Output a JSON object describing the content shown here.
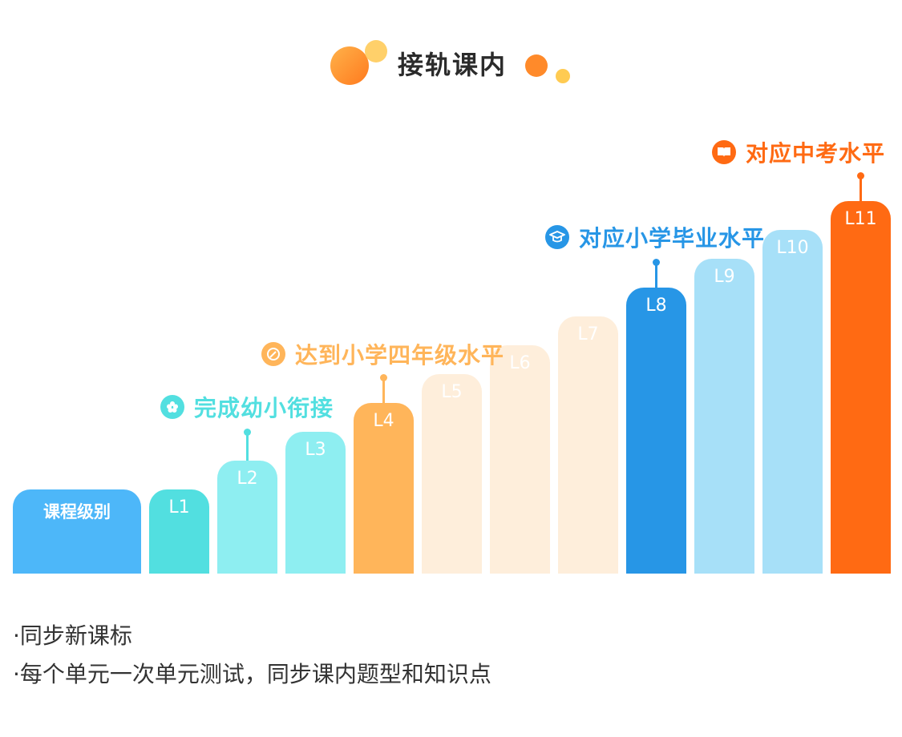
{
  "header": {
    "title": "接轨课内"
  },
  "colors": {
    "teal": "#52DFE0",
    "cyan_light": "#8EEEF1",
    "orange_mid": "#FFB55A",
    "cream": "#FEEEDB",
    "blue": "#2796E6",
    "sky": "#A7E0F8",
    "orange_deep": "#FF6A13",
    "base_blue": "#4DB7F9"
  },
  "chart_data": {
    "type": "bar",
    "categories": [
      "课程级别",
      "L1",
      "L2",
      "L3",
      "L4",
      "L5",
      "L6",
      "L7",
      "L8",
      "L9",
      "L10",
      "L11"
    ],
    "values": [
      1,
      1,
      2,
      3,
      4,
      5,
      6,
      7,
      8,
      9,
      10,
      11
    ],
    "bar_colors": [
      "#4DB7F9",
      "#52DFE0",
      "#8EEEF1",
      "#8EEEF1",
      "#FFB55A",
      "#FEEEDB",
      "#FEEEDB",
      "#FEEEDB",
      "#2796E6",
      "#A7E0F8",
      "#A7E0F8",
      "#FF6A13"
    ],
    "label_colors": [
      "#ffffff",
      "#ffffff",
      "#ffffff",
      "#ffffff",
      "#ffffff",
      "#ffffff",
      "#ffffff",
      "#ffffff",
      "#ffffff",
      "#ffffff",
      "#ffffff",
      "#ffffff"
    ],
    "annotations": [
      {
        "text": "完成幼小衔接",
        "level": "L2",
        "color": "#52DFE0",
        "icon": "flower-icon"
      },
      {
        "text": "达到小学四年级水平",
        "level": "L4",
        "color": "#FFB55A",
        "icon": "compass-icon"
      },
      {
        "text": "对应小学毕业水平",
        "level": "L8",
        "color": "#2796E6",
        "icon": "graduation-cap-icon"
      },
      {
        "text": "对应中考水平",
        "level": "L11",
        "color": "#FF6A13",
        "icon": "book-icon"
      }
    ],
    "title": "",
    "xlabel": "",
    "ylabel": ""
  },
  "notes": [
    "·同步新课标",
    "·每个单元一次单元测试，同步课内题型和知识点"
  ]
}
